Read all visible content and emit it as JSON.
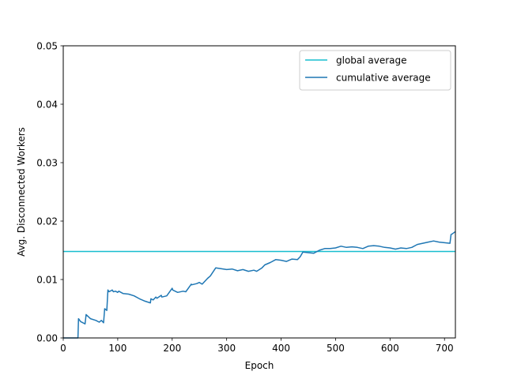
{
  "chart_data": {
    "type": "line",
    "title": "",
    "xlabel": "Epoch",
    "ylabel": "Avg. Disconnected Workers",
    "xlim": [
      0,
      720
    ],
    "ylim": [
      0,
      0.05
    ],
    "xticks": [
      0,
      100,
      200,
      300,
      400,
      500,
      600,
      700
    ],
    "yticks": [
      0.0,
      0.01,
      0.02,
      0.03,
      0.04,
      0.05
    ],
    "ytick_labels": [
      "0.00",
      "0.01",
      "0.02",
      "0.03",
      "0.04",
      "0.05"
    ],
    "grid": false,
    "legend": "upper right",
    "series": [
      {
        "name": "global average",
        "color": "#17becf",
        "kind": "hline",
        "value": 0.0148
      },
      {
        "name": "cumulative average",
        "color": "#1f77b4",
        "x": [
          0,
          27,
          28,
          32,
          40,
          42,
          50,
          60,
          66,
          70,
          74,
          76,
          80,
          82,
          84,
          90,
          92,
          96,
          100,
          102,
          110,
          120,
          130,
          140,
          150,
          160,
          161,
          165,
          170,
          172,
          180,
          181,
          190,
          200,
          201,
          210,
          220,
          225,
          235,
          236,
          245,
          250,
          255,
          260,
          265,
          270,
          280,
          300,
          310,
          320,
          330,
          340,
          350,
          355,
          365,
          370,
          380,
          390,
          400,
          410,
          420,
          430,
          435,
          440,
          450,
          460,
          470,
          480,
          490,
          500,
          510,
          520,
          530,
          540,
          550,
          560,
          570,
          580,
          590,
          600,
          610,
          620,
          630,
          640,
          650,
          660,
          670,
          680,
          690,
          700,
          710,
          712,
          714,
          720
        ],
        "y": [
          0,
          0,
          0.0033,
          0.0028,
          0.0024,
          0.004,
          0.0033,
          0.003,
          0.0027,
          0.003,
          0.0026,
          0.005,
          0.0047,
          0.0082,
          0.0079,
          0.0082,
          0.0079,
          0.008,
          0.0078,
          0.008,
          0.0076,
          0.0075,
          0.0072,
          0.0067,
          0.0063,
          0.006,
          0.0067,
          0.0065,
          0.007,
          0.0068,
          0.0073,
          0.007,
          0.0072,
          0.0085,
          0.0082,
          0.0078,
          0.008,
          0.0079,
          0.0092,
          0.0091,
          0.0093,
          0.0095,
          0.0092,
          0.0097,
          0.0102,
          0.0106,
          0.012,
          0.0117,
          0.0118,
          0.0115,
          0.0117,
          0.0114,
          0.0116,
          0.0114,
          0.012,
          0.0125,
          0.0129,
          0.0134,
          0.0133,
          0.0131,
          0.0135,
          0.0134,
          0.0139,
          0.0147,
          0.0146,
          0.0145,
          0.015,
          0.0153,
          0.0153,
          0.0154,
          0.0157,
          0.0155,
          0.0156,
          0.0155,
          0.0153,
          0.0157,
          0.0158,
          0.0157,
          0.0155,
          0.0154,
          0.0152,
          0.0154,
          0.0153,
          0.0155,
          0.016,
          0.0162,
          0.0164,
          0.0166,
          0.0164,
          0.0163,
          0.0162,
          0.0177,
          0.0178,
          0.0182
        ]
      }
    ]
  }
}
